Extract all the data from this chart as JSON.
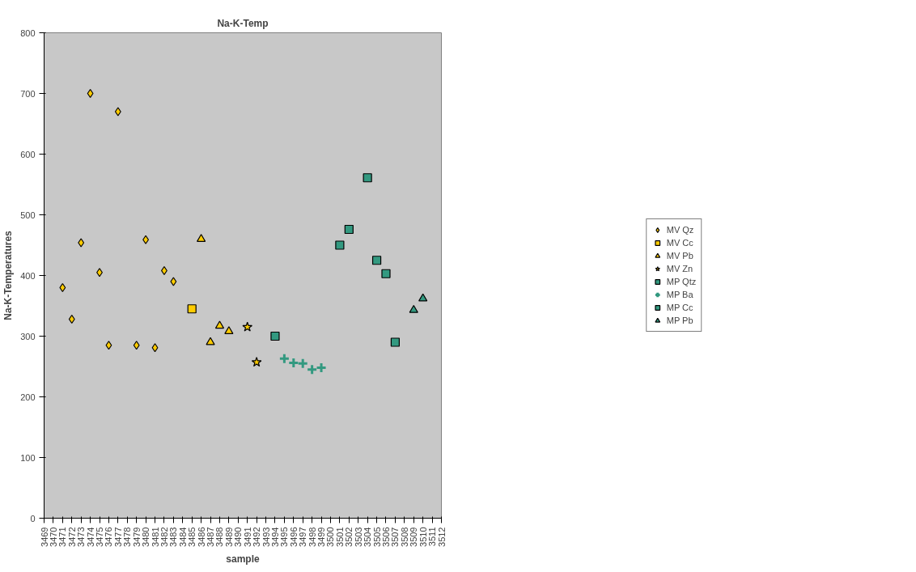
{
  "chart_data": {
    "type": "scatter",
    "title": "Na-K-Temp",
    "xlabel": "sample",
    "ylabel": "Na-K-Temperatures",
    "series": [
      {
        "name": "MV Qz",
        "color": "#ffcc00",
        "marker": "diamond",
        "x": [
          3471,
          3472,
          3473,
          3474,
          3475,
          3476,
          3477,
          3479,
          3480,
          3481,
          3482,
          3483
        ],
        "values": [
          380,
          328,
          454,
          700,
          405,
          285,
          670,
          285,
          459,
          281,
          408,
          390
        ]
      },
      {
        "name": "MV Cc",
        "color": "#ffcc00",
        "marker": "square",
        "x": [
          3485
        ],
        "values": [
          345
        ]
      },
      {
        "name": "MV Pb",
        "color": "#ffcc00",
        "marker": "triangle",
        "x": [
          3486,
          3487,
          3488,
          3489
        ],
        "values": [
          460,
          290,
          317,
          308
        ]
      },
      {
        "name": "MV Zn",
        "color": "#ffcc00",
        "marker": "star",
        "x": [
          3491,
          3492
        ],
        "values": [
          315,
          257
        ]
      },
      {
        "name": "MP Qtz",
        "color": "#339980",
        "marker": "square",
        "x": [
          3494
        ],
        "values": [
          300
        ]
      },
      {
        "name": "MP Ba",
        "color": "#339980",
        "marker": "cross",
        "x": [
          3495,
          3496,
          3497,
          3498,
          3499
        ],
        "values": [
          263,
          256,
          255,
          245,
          248
        ]
      },
      {
        "name": "MP Cc",
        "color": "#339980",
        "marker": "square",
        "x": [
          3501,
          3502,
          3504,
          3505,
          3506,
          3507
        ],
        "values": [
          450,
          476,
          561,
          425,
          403,
          290
        ]
      },
      {
        "name": "MP Pb",
        "color": "#339980",
        "marker": "triangle",
        "x": [
          3509,
          3510
        ],
        "values": [
          343,
          362
        ]
      }
    ],
    "xlim": [
      3469,
      3512
    ],
    "xticks": [
      3469,
      3470,
      3471,
      3472,
      3473,
      3474,
      3475,
      3476,
      3477,
      3478,
      3479,
      3480,
      3481,
      3482,
      3483,
      3484,
      3485,
      3486,
      3487,
      3488,
      3489,
      3490,
      3491,
      3492,
      3493,
      3494,
      3495,
      3496,
      3497,
      3498,
      3499,
      3500,
      3501,
      3502,
      3503,
      3504,
      3505,
      3506,
      3507,
      3508,
      3509,
      3510,
      3511,
      3512
    ],
    "ylim": [
      0,
      800
    ],
    "yticks": [
      0,
      100,
      200,
      300,
      400,
      500,
      600,
      700,
      800
    ],
    "grid": false,
    "legend": "right"
  }
}
